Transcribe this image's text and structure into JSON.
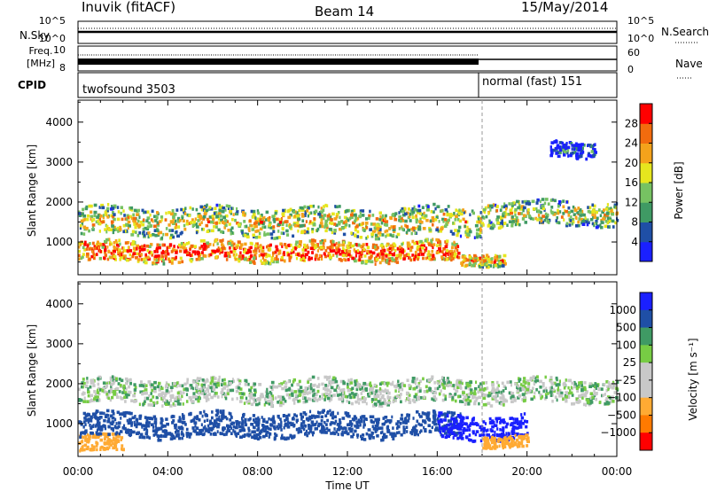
{
  "header": {
    "station": "Inuvik (fitACF)",
    "beam": "Beam 14",
    "date": "15/May/2014"
  },
  "side_labels": {
    "nsky": "N.Sky",
    "freq_line1": "Freq.",
    "freq_line2": "[MHz]",
    "cpid": "CPID",
    "nsearch": "N.Search",
    "nave": "Nave"
  },
  "noise_panel": {
    "left_ticks": [
      "10^5",
      "10^0"
    ],
    "right_ticks": [
      "10^5",
      "10^0"
    ]
  },
  "freq_panel": {
    "left_ticks": [
      "10",
      "8"
    ],
    "right_ticks": [
      "60",
      "0"
    ]
  },
  "cpid_panel": {
    "mode1": "twofsound 3503",
    "mode2": "normal (fast) 151",
    "switch_time_h": 18.0
  },
  "time_axis": {
    "label": "Time UT",
    "ticks": [
      "00:00",
      "04:00",
      "08:00",
      "12:00",
      "16:00",
      "20:00",
      "00:00"
    ]
  },
  "colors": {
    "power": [
      "#1a20ff",
      "#1f4fa6",
      "#3f9a64",
      "#76c262",
      "#e6e61e",
      "#f4a21b",
      "#f26b0e",
      "#ff0000"
    ],
    "velocity": [
      "#ff0000",
      "#ff7a00",
      "#ffaa33",
      "#c8c8c8",
      "#c8c8c8",
      "#77cc44",
      "#3f9a64",
      "#1f4fa6",
      "#1a20ff"
    ]
  },
  "chart_data": [
    {
      "type": "heatmap",
      "name": "power",
      "ylabel": "Slant Range [km]",
      "xlabel": "",
      "yticks": [
        1000,
        2000,
        3000,
        4000
      ],
      "ylim": [
        180,
        4550
      ],
      "xlim": [
        0,
        24
      ],
      "colorbar": {
        "label": "Power [dB]",
        "min": 0,
        "max": 32,
        "ticks": [
          4,
          8,
          12,
          16,
          20,
          24,
          28
        ]
      },
      "scatter_regions_summary": [
        {
          "t_start": 0,
          "t_end": 17,
          "range_center": 750,
          "range_halfwidth": 250,
          "level": 28
        },
        {
          "t_start": 0,
          "t_end": 18,
          "range_center": 1500,
          "range_halfwidth": 350,
          "level": 20
        },
        {
          "t_start": 17,
          "t_end": 19,
          "range_center": 550,
          "range_halfwidth": 150,
          "level": 24
        },
        {
          "t_start": 18,
          "t_end": 24,
          "range_center": 1700,
          "range_halfwidth": 300,
          "level": 18
        },
        {
          "t_start": 21,
          "t_end": 23,
          "range_center": 3300,
          "range_halfwidth": 200,
          "level": 6
        }
      ]
    },
    {
      "type": "heatmap",
      "name": "velocity",
      "ylabel": "Slant Range [km]",
      "xlabel": "Time UT",
      "yticks": [
        1000,
        2000,
        3000,
        4000
      ],
      "ylim": [
        180,
        4550
      ],
      "xlim": [
        0,
        24
      ],
      "colorbar": {
        "label": "Velocity [m s⁻¹]",
        "ticks": [
          "1000",
          "500",
          "100",
          "25",
          "−25",
          "−100",
          "−500",
          "−1000"
        ]
      },
      "scatter_regions_summary": [
        {
          "t_start": 0,
          "t_end": 2,
          "range_center": 500,
          "range_halfwidth": 200,
          "velocity": -200
        },
        {
          "t_start": 0,
          "t_end": 17,
          "range_center": 950,
          "range_halfwidth": 300,
          "velocity": 250
        },
        {
          "t_start": 0,
          "t_end": 24,
          "range_center": 1800,
          "range_halfwidth": 300,
          "velocity": 0
        },
        {
          "t_start": 16,
          "t_end": 20,
          "range_center": 900,
          "range_halfwidth": 300,
          "velocity": 800
        },
        {
          "t_start": 18,
          "t_end": 20,
          "range_center": 550,
          "range_halfwidth": 150,
          "velocity": -300
        }
      ]
    }
  ]
}
